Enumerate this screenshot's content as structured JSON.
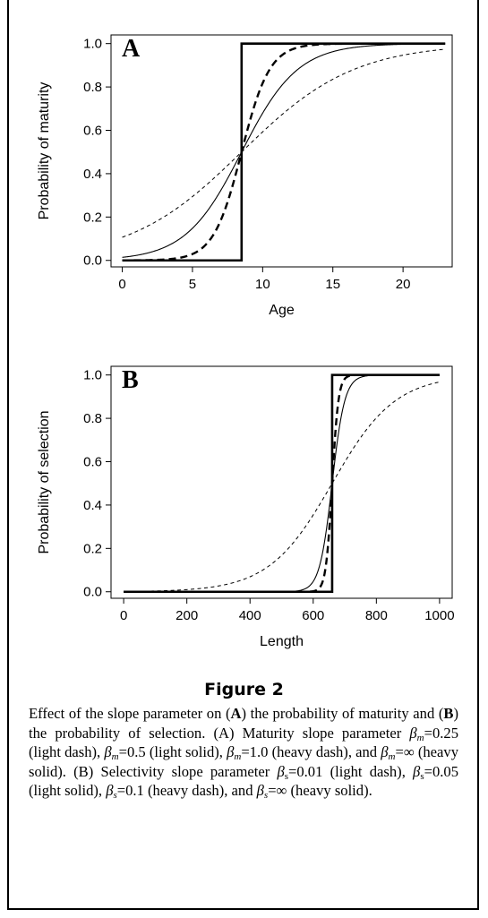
{
  "chart_data": [
    {
      "type": "line",
      "panel": "A",
      "xlabel": "Age",
      "ylabel": "Probability of maturity",
      "xlim": [
        -0.8,
        23.5
      ],
      "ylim": [
        -0.03,
        1.04
      ],
      "x_ticks": [
        0,
        5,
        10,
        15,
        20
      ],
      "y_ticks": [
        0.0,
        0.2,
        0.4,
        0.6,
        0.8,
        1.0
      ],
      "y_tick_labels": [
        "0.0",
        "0.2",
        "0.4",
        "0.6",
        "0.8",
        "1.0"
      ],
      "grid": false,
      "x_domain": [
        0,
        23
      ],
      "series": [
        {
          "style": "light-dash",
          "slope": 0.25,
          "inflection": 8.5
        },
        {
          "style": "light-solid",
          "slope": 0.5,
          "inflection": 8.5
        },
        {
          "style": "heavy-dash",
          "slope": 1.0,
          "inflection": 8.5
        },
        {
          "style": "heavy-solid",
          "slope": "infinity",
          "inflection": 8.5
        }
      ]
    },
    {
      "type": "line",
      "panel": "B",
      "xlabel": "Length",
      "ylabel": "Probability of selection",
      "xlim": [
        -40,
        1040
      ],
      "ylim": [
        -0.03,
        1.04
      ],
      "x_ticks": [
        0,
        200,
        400,
        600,
        800,
        1000
      ],
      "y_ticks": [
        0.0,
        0.2,
        0.4,
        0.6,
        0.8,
        1.0
      ],
      "y_tick_labels": [
        "0.0",
        "0.2",
        "0.4",
        "0.6",
        "0.8",
        "1.0"
      ],
      "grid": false,
      "x_domain": [
        0,
        1000
      ],
      "series": [
        {
          "style": "light-dash",
          "slope": 0.01,
          "inflection": 660
        },
        {
          "style": "light-solid",
          "slope": 0.05,
          "inflection": 660
        },
        {
          "style": "heavy-dash",
          "slope": 0.1,
          "inflection": 660
        },
        {
          "style": "heavy-solid",
          "slope": "infinity",
          "inflection": 660
        }
      ]
    }
  ],
  "figure_label": "Figure 2",
  "caption": {
    "t1": "Effect of the slope parameter on (",
    "A": "A",
    "t2": ") the probability of maturity and (",
    "B": "B",
    "t3": ") the probability of selection. (A) Maturity slope parameter ",
    "m1": "β",
    "m1s": "m",
    "t4": "=0.25 (light dash), ",
    "m2": "β",
    "m2s": "m",
    "t5": "=0.5 (light solid), ",
    "m3": "β",
    "m3s": "m",
    "t6": "=1.0 (heavy dash), and ",
    "m4": "β",
    "m4s": "m",
    "t7": "=∞ (heavy solid). (B) Selectivity slope parameter ",
    "s1": "β",
    "s1s": "s",
    "t8": "=0.01 (light dash), ",
    "s2": "β",
    "s2s": "s",
    "t9": "=0.05 (light solid), ",
    "s3": "β",
    "s3s": "s",
    "t10": "=0.1 (heavy dash), and ",
    "s4": "β",
    "s4s": "s",
    "t11": "=∞ (heavy solid)."
  }
}
